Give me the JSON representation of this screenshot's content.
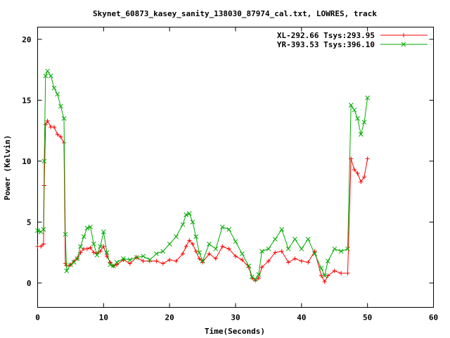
{
  "chart_data": {
    "type": "line",
    "title": "Skynet_60873_kasey_sanity_138030_87974_cal.txt, LOWRES, track",
    "xlabel": "Time(Seconds)",
    "ylabel": "Power (Kelvin)",
    "xlim": [
      0,
      60
    ],
    "ylim": [
      -2,
      21
    ],
    "xticks": [
      0,
      10,
      20,
      30,
      40,
      50,
      60
    ],
    "yticks": [
      0,
      5,
      10,
      15,
      20
    ],
    "x_tick_labels": [
      "0",
      "10",
      "20",
      "30",
      "40",
      "50",
      "60"
    ],
    "y_tick_labels": [
      "0",
      "5",
      "10",
      "15",
      "20"
    ],
    "grid": false,
    "legend_position": "top-right",
    "series": [
      {
        "name": "XL-292.66 Tsys:293.95",
        "color": "#ff0000",
        "marker": "plus",
        "x": [
          0,
          0.5,
          0.9,
          1.0,
          1.2,
          1.5,
          2.0,
          2.5,
          3.0,
          3.5,
          4.0,
          4.2,
          4.4,
          5,
          5.5,
          6,
          6.5,
          7,
          7.5,
          8,
          8.5,
          9,
          9.5,
          10,
          10.5,
          11,
          11.5,
          12,
          13,
          14,
          15,
          16,
          17,
          18,
          19,
          20,
          21,
          22,
          22.5,
          23,
          23.5,
          24,
          24.5,
          25,
          26,
          27,
          28,
          29,
          30,
          31,
          32,
          32.5,
          33,
          33.5,
          34,
          35,
          36,
          37,
          38,
          39,
          40,
          41,
          42,
          43,
          43.5,
          44,
          45,
          46,
          47,
          47.5,
          48,
          48.5,
          49,
          49.5,
          50
        ],
        "y": [
          3.0,
          3.0,
          3.2,
          8.0,
          13.0,
          13.3,
          12.8,
          12.8,
          12.2,
          12.0,
          11.5,
          1.6,
          1.4,
          1.5,
          1.8,
          2.0,
          2.5,
          2.8,
          2.8,
          2.9,
          2.5,
          2.4,
          2.6,
          3.0,
          2.2,
          1.7,
          1.4,
          1.5,
          1.9,
          1.6,
          2.1,
          1.8,
          1.8,
          1.8,
          1.6,
          1.9,
          1.8,
          2.4,
          3.0,
          3.5,
          3.2,
          2.6,
          2.0,
          1.7,
          2.4,
          2.0,
          3.0,
          2.8,
          2.2,
          1.9,
          1.3,
          0.4,
          0.2,
          0.4,
          1.3,
          1.8,
          2.5,
          2.6,
          1.7,
          2.0,
          1.8,
          1.7,
          2.6,
          0.6,
          0.1,
          0.6,
          1.0,
          0.8,
          0.8,
          10.2,
          9.3,
          9.0,
          8.3,
          8.7,
          10.2
        ]
      },
      {
        "name": "YR-393.53 Tsys:396.10",
        "color": "#00aa00",
        "marker": "x",
        "x": [
          0,
          0.5,
          0.9,
          1.0,
          1.2,
          1.5,
          2.0,
          2.5,
          3.0,
          3.5,
          4.0,
          4.2,
          4.4,
          5,
          5.5,
          6,
          6.5,
          7,
          7.5,
          8,
          8.5,
          9,
          9.5,
          10,
          10.5,
          11,
          11.5,
          12,
          13,
          14,
          15,
          16,
          17,
          18,
          19,
          20,
          21,
          22,
          22.5,
          23,
          23.5,
          24,
          24.5,
          25,
          26,
          27,
          28,
          29,
          30,
          31,
          32,
          32.5,
          33,
          33.5,
          34,
          35,
          36,
          37,
          38,
          39,
          40,
          41,
          42,
          43,
          43.5,
          44,
          45,
          46,
          47,
          47.5,
          48,
          48.5,
          49,
          49.5,
          50
        ],
        "y": [
          4.3,
          4.2,
          4.4,
          10.0,
          17.0,
          17.4,
          17.0,
          16.0,
          15.5,
          14.5,
          13.5,
          4.0,
          1.0,
          1.5,
          1.7,
          2.0,
          3.0,
          3.8,
          4.5,
          4.6,
          3.2,
          2.3,
          3.0,
          4.2,
          2.5,
          1.5,
          1.4,
          1.7,
          2.0,
          1.9,
          2.1,
          2.2,
          1.9,
          2.4,
          2.6,
          3.2,
          3.8,
          4.8,
          5.6,
          5.7,
          5.0,
          3.8,
          2.5,
          1.8,
          3.2,
          2.8,
          4.6,
          4.4,
          3.4,
          2.4,
          1.4,
          0.5,
          0.3,
          0.7,
          2.6,
          2.8,
          3.6,
          4.4,
          2.8,
          3.6,
          2.8,
          3.6,
          2.4,
          1.2,
          0.6,
          1.8,
          2.8,
          2.6,
          2.8,
          14.6,
          14.2,
          13.5,
          12.2,
          13.2,
          15.2
        ]
      }
    ]
  }
}
